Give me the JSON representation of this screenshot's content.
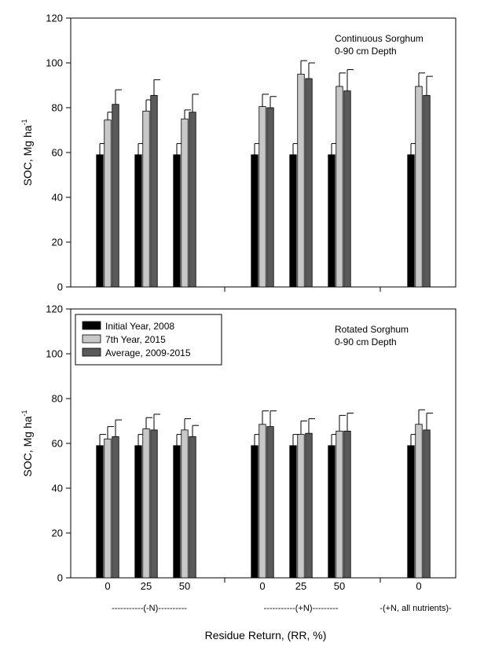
{
  "colors": {
    "initial": "#000000",
    "year7": "#c8c8c8",
    "average": "#5a5a5a",
    "axis": "#000000"
  },
  "chart_data": [
    {
      "type": "bar",
      "annotation": [
        "Continuous Sorghum",
        "0-90 cm Depth"
      ],
      "ylabel": "SOC, Mg ha",
      "ylabel_sup": "-1",
      "ylim": [
        0,
        120
      ],
      "yticks": [
        "0",
        "20",
        "40",
        "60",
        "80",
        "100",
        "120"
      ],
      "series": [
        {
          "name": "Initial Year, 2008",
          "values": [
            59,
            59,
            59,
            59,
            59,
            59,
            59
          ],
          "errors": [
            5,
            5,
            5,
            5,
            5,
            5,
            5
          ]
        },
        {
          "name": "7th Year, 2015",
          "values": [
            74.5,
            78.5,
            75,
            80.5,
            95,
            89.5,
            89.5
          ],
          "errors": [
            3.5,
            5,
            4,
            5.5,
            6,
            6,
            6
          ]
        },
        {
          "name": "Average, 2009-2015",
          "values": [
            81.5,
            85.5,
            78,
            80,
            93,
            87.5,
            85.5
          ],
          "errors": [
            6.5,
            7,
            8,
            5,
            7,
            9.5,
            8.5
          ]
        }
      ]
    },
    {
      "type": "bar",
      "annotation": [
        "Rotated Sorghum",
        "0-90 cm Depth"
      ],
      "ylabel": "SOC, Mg ha",
      "ylabel_sup": "-1",
      "ylim": [
        0,
        120
      ],
      "yticks": [
        "0",
        "20",
        "40",
        "60",
        "80",
        "100",
        "120"
      ],
      "legend": [
        "Initial Year, 2008",
        "7th Year, 2015",
        "Average, 2009-2015"
      ],
      "series": [
        {
          "name": "Initial Year, 2008",
          "values": [
            59,
            59,
            59,
            59,
            59,
            59,
            59
          ],
          "errors": [
            5,
            5,
            5,
            5,
            5,
            5,
            5
          ]
        },
        {
          "name": "7th Year, 2015",
          "values": [
            62,
            66.5,
            66,
            68.5,
            64,
            65.5,
            68.5
          ],
          "errors": [
            5.5,
            5,
            5,
            6,
            6,
            7,
            6.5
          ]
        },
        {
          "name": "Average, 2009-2015",
          "values": [
            63,
            66,
            63,
            67.5,
            64.5,
            65.5,
            66
          ],
          "errors": [
            7.5,
            7,
            5,
            7,
            6.5,
            8,
            7.5
          ]
        }
      ]
    }
  ],
  "categories": [
    "0",
    "25",
    "50",
    "0",
    "25",
    "50",
    "0"
  ],
  "group_labels": [
    "-----------(-N)----------",
    "-----------(+N)---------",
    "-(+N, all nutrients)-"
  ],
  "xlabel": "Residue Return, (RR, %)"
}
